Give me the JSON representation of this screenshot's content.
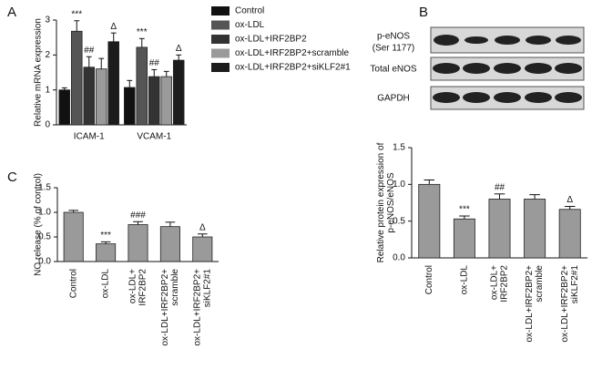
{
  "chart_data": [
    {
      "type": "grouped_bar",
      "panel": "A",
      "ylabel": [
        "Relative mRNA expression"
      ],
      "categories": [
        "ICAM-1",
        "VCAM-1"
      ],
      "series": [
        {
          "name": "Control",
          "color": "#111111",
          "values": [
            1.0,
            1.07
          ],
          "errors": [
            0.06,
            0.2
          ],
          "annotations": [
            null,
            null
          ]
        },
        {
          "name": "ox-LDL",
          "color": "#555555",
          "values": [
            2.68,
            2.22
          ],
          "errors": [
            0.3,
            0.25
          ],
          "annotations": [
            "***",
            "***"
          ]
        },
        {
          "name": "ox-LDL+IRF2BP2",
          "color": "#333333",
          "values": [
            1.65,
            1.38
          ],
          "errors": [
            0.3,
            0.2
          ],
          "annotations": [
            "##",
            "##"
          ]
        },
        {
          "name": "ox-LDL+IRF2BP2+scramble",
          "color": "#9a9a9a",
          "values": [
            1.6,
            1.38
          ],
          "errors": [
            0.3,
            0.15
          ],
          "annotations": [
            null,
            null
          ]
        },
        {
          "name": "ox-LDL+IRF2BP2+siKLF2#1",
          "color": "#1c1c1c",
          "values": [
            2.38,
            1.85
          ],
          "errors": [
            0.25,
            0.15
          ],
          "annotations": [
            "Δ",
            "Δ"
          ]
        }
      ],
      "ylim": [
        0,
        3
      ],
      "yticks": [
        0,
        1,
        2,
        3
      ],
      "legend": "upper right"
    },
    {
      "type": "bar",
      "panel": "B",
      "ylabel": [
        "Relative protein expression of",
        "p-eNOS/eNOS"
      ],
      "categories": [
        "Control",
        "ox-LDL",
        [
          "ox-LDL+",
          "IRF2BP2"
        ],
        [
          "ox-LDL+IRF2BP2+",
          "scramble"
        ],
        [
          "ox-LDL+IRF2BP2+",
          "siKLF2#1"
        ]
      ],
      "values": [
        1.0,
        0.53,
        0.8,
        0.8,
        0.66
      ],
      "errors": [
        0.06,
        0.04,
        0.07,
        0.06,
        0.04
      ],
      "annotations": [
        null,
        "***",
        "##",
        null,
        "Δ"
      ],
      "color": "#9a9a9a",
      "ylim": [
        0,
        1.5
      ],
      "yticks": [
        {
          "value": 0,
          "label": "0.0"
        },
        0.5,
        {
          "value": 1,
          "label": "1.0"
        },
        1.5
      ]
    },
    {
      "type": "bar",
      "panel": "C",
      "ylabel": [
        "NO release (% of control)"
      ],
      "categories": [
        "Control",
        "ox-LDL",
        [
          "ox-LDL+",
          "IRF2BP2"
        ],
        [
          "ox-LDL+IRF2BP2+",
          "scramble"
        ],
        [
          "ox-LDL+IRF2BP2+",
          "siKLF2#1"
        ]
      ],
      "values": [
        1.0,
        0.36,
        0.75,
        0.71,
        0.5
      ],
      "errors": [
        0.04,
        0.04,
        0.06,
        0.09,
        0.06
      ],
      "annotations": [
        null,
        "***",
        "###",
        null,
        "Δ"
      ],
      "color": "#9a9a9a",
      "ylim": [
        0,
        1.5
      ],
      "yticks": [
        {
          "value": 0,
          "label": "0.0"
        },
        0.5,
        {
          "value": 1,
          "label": "1.0"
        },
        1.5
      ]
    }
  ],
  "blot_labels": [
    "p-eNOS",
    "(Ser 1177)",
    "Total eNOS",
    "GAPDH"
  ]
}
